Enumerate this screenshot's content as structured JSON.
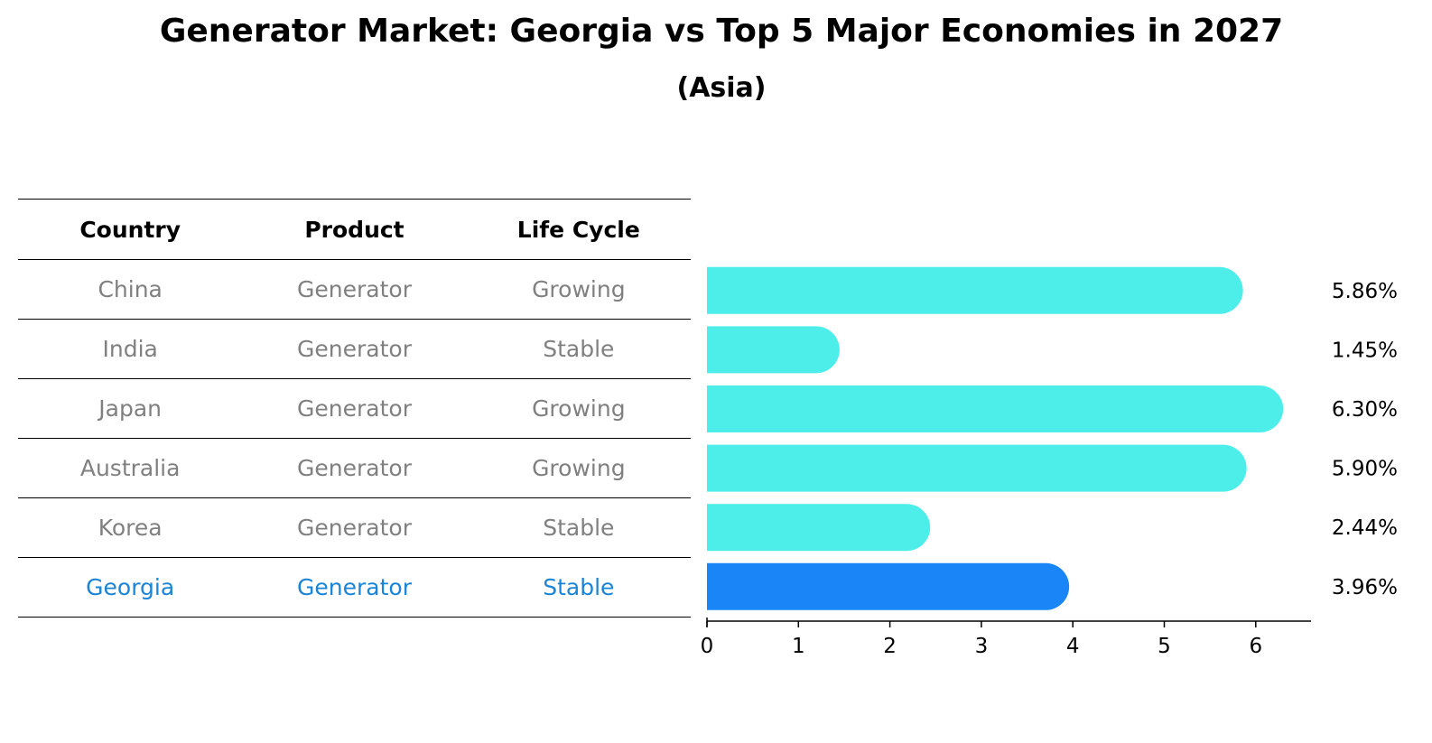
{
  "title": "Generator Market: Georgia vs Top 5 Major Economies in 2027",
  "subtitle": "(Asia)",
  "table": {
    "headers": [
      "Country",
      "Product",
      "Life Cycle"
    ],
    "rows": [
      {
        "country": "China",
        "product": "Generator",
        "life_cycle": "Growing"
      },
      {
        "country": "India",
        "product": "Generator",
        "life_cycle": "Stable"
      },
      {
        "country": "Japan",
        "product": "Generator",
        "life_cycle": "Growing"
      },
      {
        "country": "Australia",
        "product": "Generator",
        "life_cycle": "Growing"
      },
      {
        "country": "Korea",
        "product": "Generator",
        "life_cycle": "Stable"
      },
      {
        "country": "Georgia",
        "product": "Generator",
        "life_cycle": "Stable"
      }
    ]
  },
  "chart_data": {
    "type": "bar",
    "orientation": "horizontal",
    "categories": [
      "China",
      "India",
      "Japan",
      "Australia",
      "Korea",
      "Georgia"
    ],
    "values": [
      5.86,
      1.45,
      6.3,
      5.9,
      2.44,
      3.96
    ],
    "value_labels": [
      "5.86%",
      "1.45%",
      "6.30%",
      "5.90%",
      "2.44%",
      "3.96%"
    ],
    "xlim": [
      0,
      6.6
    ],
    "xticks": [
      "0",
      "1",
      "2",
      "3",
      "4",
      "5",
      "6"
    ],
    "grid": false,
    "colors": {
      "default": "#4deeea",
      "highlight": "#1a85f7"
    },
    "highlight_index": 5
  }
}
